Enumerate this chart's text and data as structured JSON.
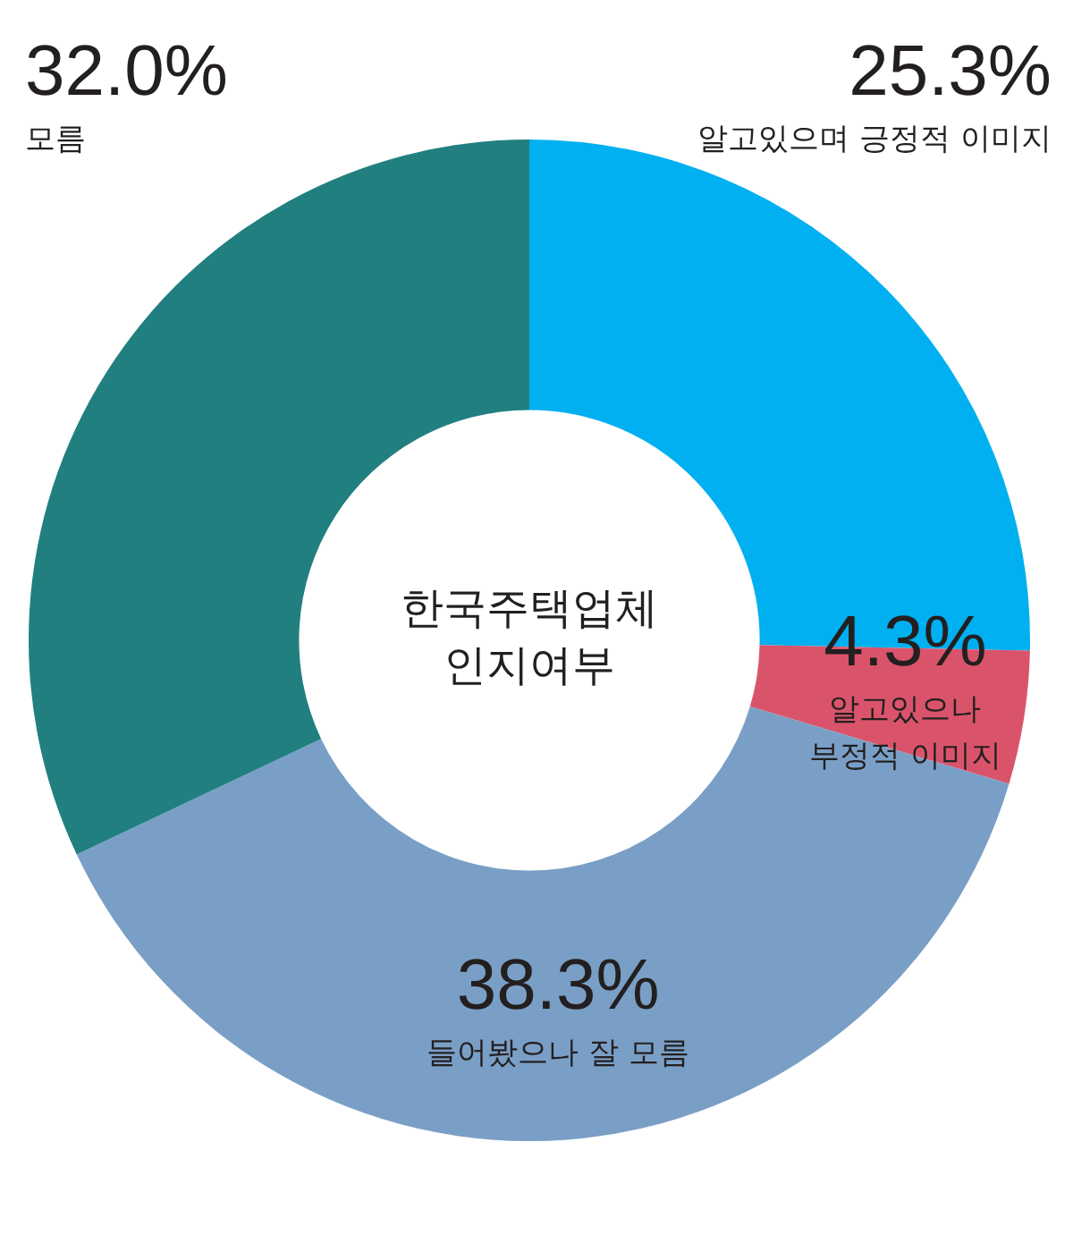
{
  "chart_data": {
    "type": "donut",
    "title": "한국주택업체 인지여부",
    "categories": [
      "알고있으며 긍정적 이미지",
      "알고있으나 부정적 이미지",
      "들어봤으나 잘 모름",
      "모름"
    ],
    "values": [
      25.3,
      4.3,
      38.3,
      32.0
    ],
    "value_labels": [
      "25.3%",
      "4.3%",
      "38.3%",
      "32.0%"
    ],
    "colors": [
      "#00b0f0",
      "#d9546a",
      "#7a9fc6",
      "#217f80"
    ],
    "legend": false
  }
}
